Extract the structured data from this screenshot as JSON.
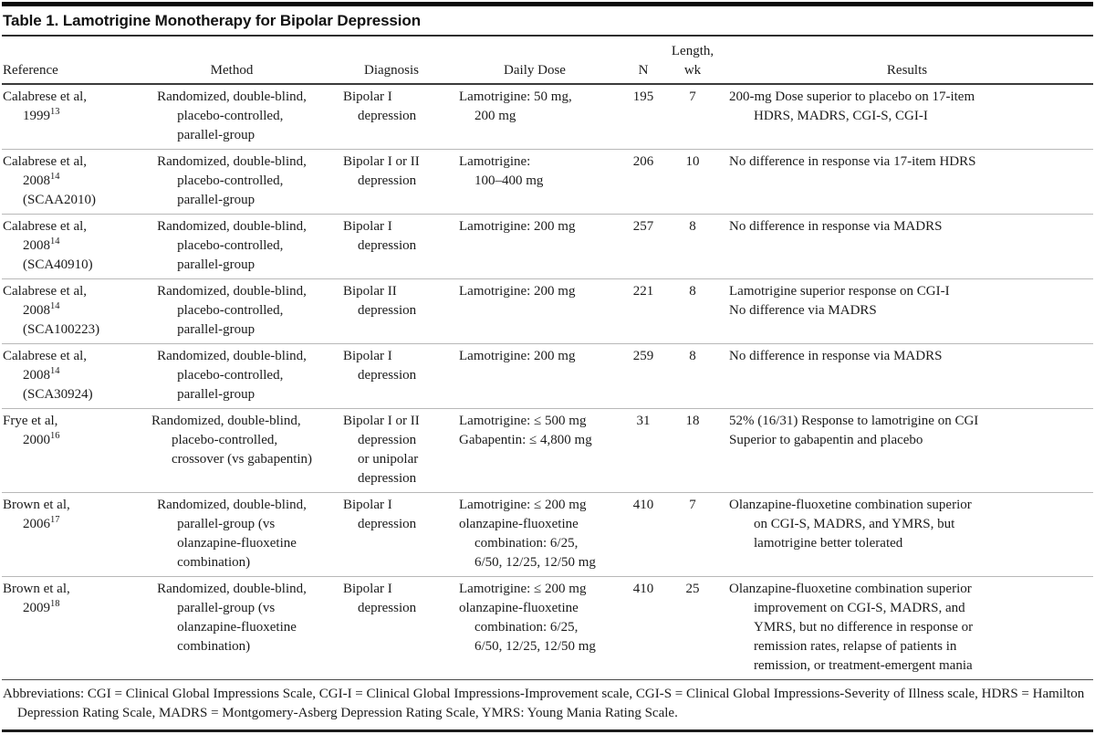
{
  "page": {
    "title": "Table 1. Lamotrigine Monotherapy for Bipolar Depression"
  },
  "table": {
    "headers": {
      "reference": "Reference",
      "method": "Method",
      "diagnosis": "Diagnosis",
      "dose": "Daily Dose",
      "n": "N",
      "length_line1": "Length,",
      "length_line2": "wk",
      "results": "Results"
    },
    "rows": [
      {
        "reference": [
          [
            "Calabrese et al,",
            "1999^{13}"
          ]
        ],
        "method": [
          [
            "Randomized, double-blind,",
            "placebo-controlled,",
            "parallel-group"
          ]
        ],
        "diagnosis": [
          [
            "Bipolar I",
            "depression"
          ]
        ],
        "dose": [
          [
            "Lamotrigine: 50 mg,",
            "200 mg"
          ]
        ],
        "n": "195",
        "length_wk": "7",
        "results": [
          [
            "200-mg Dose superior to placebo on 17-item",
            "HDRS, MADRS, CGI-S, CGI-I"
          ]
        ]
      },
      {
        "reference": [
          [
            "Calabrese et al,",
            "2008^{14}",
            "(SCAA2010)"
          ]
        ],
        "method": [
          [
            "Randomized, double-blind,",
            "placebo-controlled,",
            "parallel-group"
          ]
        ],
        "diagnosis": [
          [
            "Bipolar I or II",
            "depression"
          ]
        ],
        "dose": [
          [
            "Lamotrigine:",
            "100–400 mg"
          ]
        ],
        "n": "206",
        "length_wk": "10",
        "results": [
          [
            "No difference in response via 17-item HDRS"
          ]
        ]
      },
      {
        "reference": [
          [
            "Calabrese et al,",
            "2008^{14}",
            "(SCA40910)"
          ]
        ],
        "method": [
          [
            "Randomized, double-blind,",
            "placebo-controlled,",
            "parallel-group"
          ]
        ],
        "diagnosis": [
          [
            "Bipolar I",
            "depression"
          ]
        ],
        "dose": [
          [
            "Lamotrigine: 200 mg"
          ]
        ],
        "n": "257",
        "length_wk": "8",
        "results": [
          [
            "No difference in response via MADRS"
          ]
        ]
      },
      {
        "reference": [
          [
            "Calabrese et al,",
            "2008^{14}",
            "(SCA100223)"
          ]
        ],
        "method": [
          [
            "Randomized, double-blind,",
            "placebo-controlled,",
            "parallel-group"
          ]
        ],
        "diagnosis": [
          [
            "Bipolar II",
            "depression"
          ]
        ],
        "dose": [
          [
            "Lamotrigine: 200 mg"
          ]
        ],
        "n": "221",
        "length_wk": "8",
        "results": [
          [
            "Lamotrigine superior response on CGI-I"
          ],
          [
            "No difference via MADRS"
          ]
        ]
      },
      {
        "reference": [
          [
            "Calabrese et al,",
            "2008^{14}",
            "(SCA30924)"
          ]
        ],
        "method": [
          [
            "Randomized, double-blind,",
            "placebo-controlled,",
            "parallel-group"
          ]
        ],
        "diagnosis": [
          [
            "Bipolar I",
            "depression"
          ]
        ],
        "dose": [
          [
            "Lamotrigine: 200 mg"
          ]
        ],
        "n": "259",
        "length_wk": "8",
        "results": [
          [
            "No difference in response via MADRS"
          ]
        ]
      },
      {
        "reference": [
          [
            "Frye et al,",
            "2000^{16}"
          ]
        ],
        "method": [
          [
            "Randomized, double-blind,",
            "placebo-controlled,",
            "crossover (vs gabapentin)"
          ]
        ],
        "diagnosis": [
          [
            "Bipolar I or II",
            "depression",
            "or unipolar",
            "depression"
          ]
        ],
        "dose": [
          [
            "Lamotrigine: ≤ 500 mg"
          ],
          [
            "Gabapentin: ≤ 4,800 mg"
          ]
        ],
        "n": "31",
        "length_wk": "18",
        "results": [
          [
            "52% (16/31) Response to lamotrigine on CGI"
          ],
          [
            "Superior to gabapentin and placebo"
          ]
        ]
      },
      {
        "reference": [
          [
            "Brown et al,",
            "2006^{17}"
          ]
        ],
        "method": [
          [
            "Randomized, double-blind,",
            "parallel-group (vs",
            "olanzapine-fluoxetine",
            "combination)"
          ]
        ],
        "diagnosis": [
          [
            "Bipolar I",
            "depression"
          ]
        ],
        "dose": [
          [
            "Lamotrigine: ≤ 200 mg"
          ],
          [
            "olanzapine-fluoxetine",
            "combination: 6/25,",
            "6/50, 12/25, 12/50 mg"
          ]
        ],
        "n": "410",
        "length_wk": "7",
        "results": [
          [
            "Olanzapine-fluoxetine combination superior",
            "on CGI-S, MADRS, and YMRS, but",
            "lamotrigine better tolerated"
          ]
        ]
      },
      {
        "reference": [
          [
            "Brown et al,",
            "2009^{18}"
          ]
        ],
        "method": [
          [
            "Randomized, double-blind,",
            "parallel-group (vs",
            "olanzapine-fluoxetine",
            "combination)"
          ]
        ],
        "diagnosis": [
          [
            "Bipolar I",
            "depression"
          ]
        ],
        "dose": [
          [
            "Lamotrigine: ≤ 200 mg"
          ],
          [
            "olanzapine-fluoxetine",
            "combination: 6/25,",
            "6/50, 12/25, 12/50 mg"
          ]
        ],
        "n": "410",
        "length_wk": "25",
        "results": [
          [
            "Olanzapine-fluoxetine combination superior",
            "improvement on CGI-S, MADRS, and",
            "YMRS, but no difference in response or",
            "remission rates, relapse of patients in",
            "remission, or treatment-emergent mania"
          ]
        ]
      }
    ],
    "footnote": "Abbreviations: CGI = Clinical Global Impressions Scale, CGI-I = Clinical Global Impressions-Improvement scale, CGI-S = Clinical Global Impressions-Severity of Illness scale, HDRS = Hamilton Depression Rating Scale, MADRS = Montgomery-Asberg Depression Rating Scale, YMRS: Young Mania Rating Scale."
  }
}
